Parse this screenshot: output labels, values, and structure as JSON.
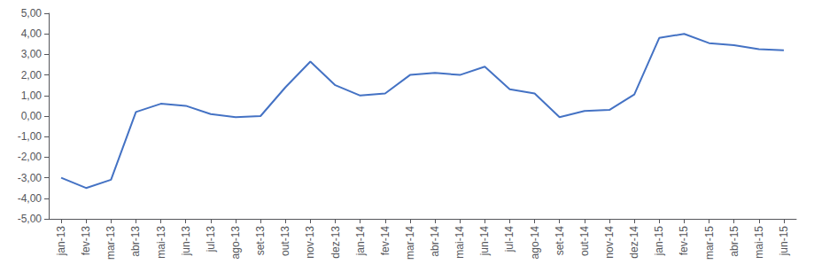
{
  "chart_data": {
    "type": "line",
    "categories": [
      "jan-13",
      "fev-13",
      "mar-13",
      "abr-13",
      "mai-13",
      "jun-13",
      "jul-13",
      "ago-13",
      "set-13",
      "out-13",
      "nov-13",
      "dez-13",
      "jan-14",
      "fev-14",
      "mar-14",
      "abr-14",
      "mai-14",
      "jun-14",
      "jul-14",
      "ago-14",
      "set-14",
      "out-14",
      "nov-14",
      "dez-14",
      "jan-15",
      "fev-15",
      "mar-15",
      "abr-15",
      "mai-15",
      "jun-15"
    ],
    "values": [
      -3.0,
      -3.5,
      -3.1,
      0.2,
      0.6,
      0.5,
      0.1,
      -0.05,
      0.0,
      1.4,
      2.65,
      1.5,
      1.0,
      1.1,
      2.0,
      2.1,
      2.0,
      2.4,
      1.3,
      1.1,
      -0.05,
      0.25,
      0.3,
      1.05,
      3.8,
      4.0,
      3.55,
      3.45,
      3.25,
      3.2
    ],
    "color": "#4472C4",
    "ylim": [
      -5.0,
      5.0
    ],
    "yticks": [
      {
        "value": -5.0,
        "label": "-5,00"
      },
      {
        "value": -4.0,
        "label": "-4,00"
      },
      {
        "value": -3.0,
        "label": "-3,00"
      },
      {
        "value": -2.0,
        "label": "-2,00"
      },
      {
        "value": -1.0,
        "label": "-1,00"
      },
      {
        "value": 0.0,
        "label": "0,00"
      },
      {
        "value": 1.0,
        "label": "1,00"
      },
      {
        "value": 2.0,
        "label": "2,00"
      },
      {
        "value": 3.0,
        "label": "3,00"
      },
      {
        "value": 4.0,
        "label": "4,00"
      },
      {
        "value": 5.0,
        "label": "5,00"
      }
    ],
    "grid": false
  }
}
